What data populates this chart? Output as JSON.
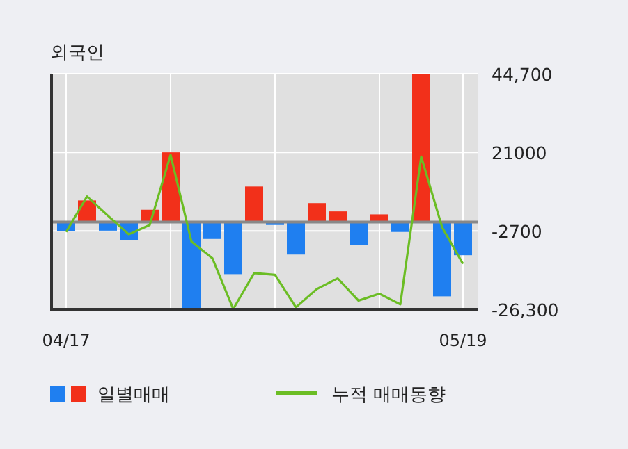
{
  "chart_data": {
    "type": "bar",
    "title": "외국인",
    "categories": [
      "04/17",
      null,
      null,
      null,
      null,
      null,
      null,
      null,
      null,
      null,
      null,
      null,
      null,
      null,
      null,
      null,
      null,
      null,
      null,
      "05/19"
    ],
    "series": [
      {
        "name": "일별매매",
        "values": [
          -2700,
          6500,
          -2600,
          -5500,
          3700,
          21000,
          -26200,
          -5100,
          -15700,
          10700,
          -900,
          -9800,
          5700,
          3200,
          -7000,
          2300,
          -3000,
          44700,
          -22400,
          -10000
        ],
        "colors": [
          "#1f7ff0",
          "#f2301a",
          "#1f7ff0",
          "#1f7ff0",
          "#f2301a",
          "#f2301a",
          "#1f7ff0",
          "#1f7ff0",
          "#1f7ff0",
          "#f2301a",
          "#1f7ff0",
          "#1f7ff0",
          "#f2301a",
          "#f2301a",
          "#1f7ff0",
          "#f2301a",
          "#1f7ff0",
          "#f2301a",
          "#1f7ff0",
          "#1f7ff0"
        ]
      },
      {
        "name": "누적 매매동향",
        "type": "line",
        "color": "#6bbd24",
        "values": [
          -3000,
          7700,
          1900,
          -3700,
          -900,
          20200,
          -5900,
          -10900,
          -26200,
          -15400,
          -15900,
          -25700,
          -20200,
          -17000,
          -23700,
          -21600,
          -24800,
          19700,
          -1600,
          -12600
        ]
      }
    ],
    "ylim": [
      -26300,
      44700
    ],
    "yticks": [
      {
        "value": 44700,
        "label": "44,700"
      },
      21000,
      -2700,
      {
        "value": -26300,
        "label": "-26,300"
      }
    ],
    "grid": true,
    "legend": "bottom"
  }
}
